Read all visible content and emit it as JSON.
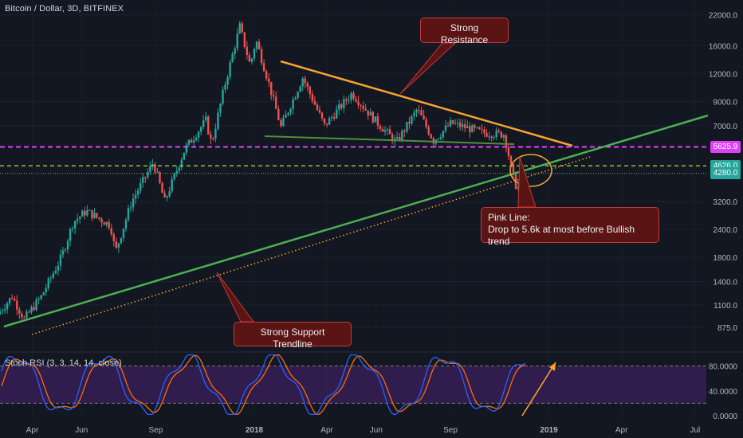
{
  "header": {
    "symbol_label": "Bitcoin / Dollar, 3D, BITFINEX"
  },
  "indicator": {
    "label": "Stoch RSI (3, 3, 14, 14, close)",
    "axis_labels": [
      "80.0000",
      "40.0000",
      "0.0000"
    ]
  },
  "price_axis": {
    "scale": "log",
    "labels": [
      "22000.0",
      "16000.0",
      "12000.0",
      "9000.0",
      "7000.0",
      "3200.0",
      "2400.0",
      "1800.0",
      "1400.0",
      "1100.0",
      "875.0"
    ]
  },
  "price_tags": [
    {
      "text": "5625.9",
      "bg": "#e040fb",
      "fg": "#ffffff"
    },
    {
      "text": "4626.0",
      "bg": "#26a69a",
      "fg": "#ffffff"
    },
    {
      "text": "4280.0",
      "bg": "#26a69a",
      "fg": "#ffffff"
    }
  ],
  "time_axis": {
    "labels": [
      "Apr",
      "Jun",
      "Sep",
      "2018",
      "Apr",
      "Jun",
      "Sep",
      "2019",
      "Apr",
      "Jul"
    ]
  },
  "annotations": {
    "resistance": "Strong Resistance",
    "support": "Strong Support Trendline",
    "pink_title": "Pink Line:",
    "pink_text": "Drop to 5.6k at most before Bullish trend"
  },
  "colors": {
    "background": "#131722",
    "up_candle": "#26a69a",
    "down_candle": "#ef5350",
    "pink_line": "#e040fb",
    "green_dashed": "#8bc34a",
    "green_trend": "#4caf50",
    "orange_line": "#f7a330",
    "stoch_k": "#2962ff",
    "stoch_d": "#ff6d00",
    "stoch_band": "#3b1f5c"
  },
  "chart_data": {
    "type": "candlestick",
    "title": "Bitcoin / Dollar, 3D, BITFINEX",
    "y_scale": "log",
    "ylim": [
      700,
      24000
    ],
    "x_range": [
      "2017-02-20",
      "2019-07-15"
    ],
    "levels": {
      "pink": 5625.9,
      "green_dashed": 4626.0,
      "dotted": 4280.0
    },
    "price_path": [
      [
        "2017-02-20",
        1000
      ],
      [
        "2017-03-10",
        1200
      ],
      [
        "2017-03-25",
        950
      ],
      [
        "2017-04-15",
        1200
      ],
      [
        "2017-05-10",
        1800
      ],
      [
        "2017-05-25",
        2600
      ],
      [
        "2017-06-10",
        2900
      ],
      [
        "2017-07-10",
        2500
      ],
      [
        "2017-07-16",
        1900
      ],
      [
        "2017-08-05",
        3200
      ],
      [
        "2017-09-01",
        4800
      ],
      [
        "2017-09-15",
        3200
      ],
      [
        "2017-10-10",
        5500
      ],
      [
        "2017-11-05",
        7400
      ],
      [
        "2017-11-12",
        5800
      ],
      [
        "2017-11-28",
        10500
      ],
      [
        "2017-12-17",
        19500
      ],
      [
        "2017-12-30",
        13000
      ],
      [
        "2018-01-06",
        17000
      ],
      [
        "2018-01-20",
        11500
      ],
      [
        "2018-02-06",
        6900
      ],
      [
        "2018-03-05",
        11500
      ],
      [
        "2018-04-01",
        7000
      ],
      [
        "2018-05-05",
        9800
      ],
      [
        "2018-06-01",
        7500
      ],
      [
        "2018-06-29",
        5900
      ],
      [
        "2018-07-25",
        8300
      ],
      [
        "2018-08-14",
        6000
      ],
      [
        "2018-09-05",
        7200
      ],
      [
        "2018-10-15",
        6500
      ],
      [
        "2018-11-10",
        6400
      ],
      [
        "2018-11-20",
        4200
      ],
      [
        "2018-11-25",
        3700
      ]
    ],
    "stoch_rsi": {
      "upper": 80,
      "lower": 20,
      "min": 0,
      "max": 100
    }
  }
}
